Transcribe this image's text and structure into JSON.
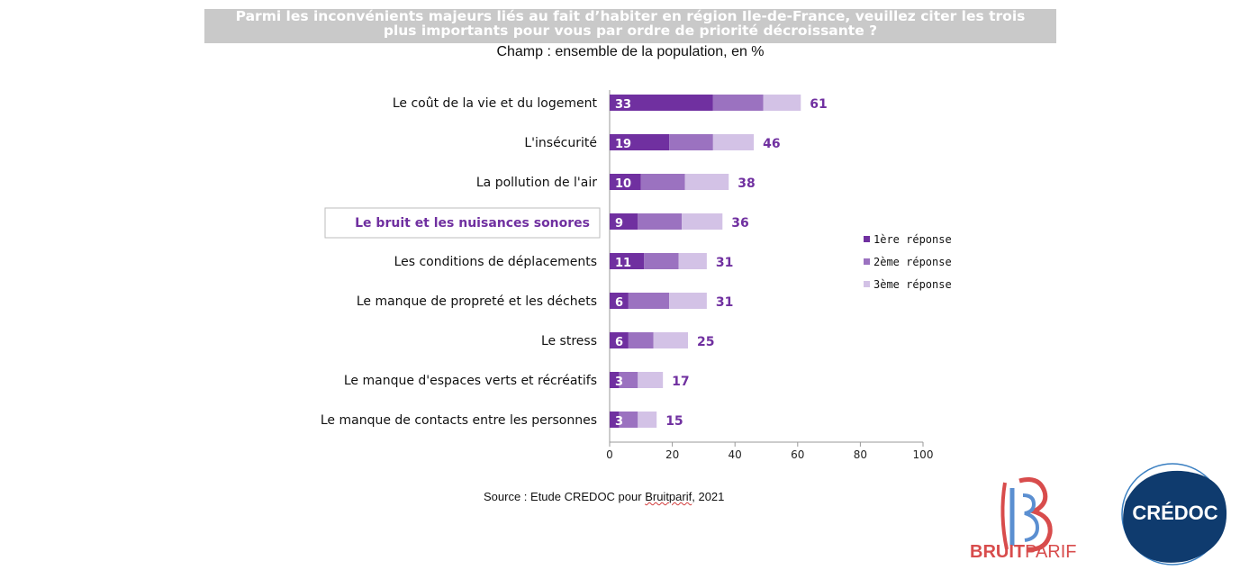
{
  "header": {
    "title_line1": "Parmi les inconvénients majeurs liés au fait d’habiter en région Ile-de-France, veuillez citer les trois",
    "title_line2": "plus importants pour vous par ordre de priorité décroissante ?",
    "subtitle": "Champ : ensemble de la population, en %"
  },
  "chart_data": {
    "type": "bar",
    "orientation": "horizontal",
    "stacked": true,
    "categories": [
      "Le coût de la vie et du logement",
      "L'insécurité",
      "La pollution de l'air",
      "Le bruit et les nuisances sonores",
      "Les conditions de déplacements",
      "Le manque de propreté et les déchets",
      "Le stress",
      "Le manque d'espaces verts et récréatifs",
      "Le manque de contacts entre les personnes"
    ],
    "highlighted_category": "Le bruit et les nuisances sonores",
    "series": [
      {
        "name": "1ère réponse",
        "color": "#7030a0",
        "values": [
          33,
          19,
          10,
          9,
          11,
          6,
          6,
          3,
          3
        ]
      },
      {
        "name": "2ème réponse",
        "color": "#9b72c0",
        "values": [
          16,
          14,
          14,
          14,
          11,
          13,
          8,
          6,
          6
        ]
      },
      {
        "name": "3ème réponse",
        "color": "#d3c2e6",
        "values": [
          12,
          13,
          14,
          13,
          9,
          12,
          11,
          8,
          6
        ]
      }
    ],
    "first_labels": [
      "33",
      "19",
      "10",
      "9",
      "11",
      "6",
      "6",
      "3",
      "3"
    ],
    "totals": [
      61,
      46,
      38,
      36,
      31,
      31,
      25,
      17,
      15
    ],
    "total_label_color": "#7030a0",
    "xlim": [
      0,
      100
    ],
    "xticks": [
      0,
      20,
      40,
      60,
      80,
      100
    ],
    "grid": false,
    "legend_position": "right"
  },
  "footer": {
    "source_prefix": "Source : Etude CREDOC pour ",
    "source_underlined": "Bruitparif",
    "source_suffix": ", 2021"
  },
  "logos": {
    "bruitparif_bold": "BRUIT",
    "bruitparif_light": "PARIF",
    "credoc": "CRÉDOC"
  }
}
